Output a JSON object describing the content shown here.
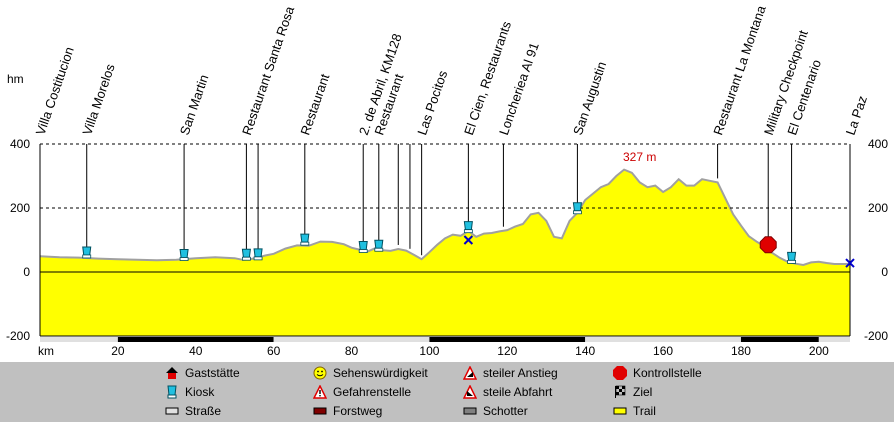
{
  "chart_data": {
    "type": "area",
    "y_unit": "hm",
    "x_unit": "km",
    "xlim": [
      0,
      208
    ],
    "ylim": [
      -200,
      400
    ],
    "x_ticks": [
      20,
      40,
      60,
      80,
      100,
      120,
      140,
      160,
      180,
      200
    ],
    "y_ticks": [
      400,
      200,
      0,
      -200
    ],
    "y_tick_labels": [
      "400",
      "200",
      "0",
      "-200"
    ],
    "grid": "dashed horizontal at 200 and 400",
    "fill_color": "#ffff00",
    "max_annotation": {
      "label": "327 m",
      "x": 150,
      "y": 327
    },
    "profile": [
      [
        0,
        49
      ],
      [
        5,
        46
      ],
      [
        10,
        45
      ],
      [
        15,
        42
      ],
      [
        20,
        40
      ],
      [
        25,
        38
      ],
      [
        30,
        37
      ],
      [
        35,
        38
      ],
      [
        40,
        43
      ],
      [
        45,
        46
      ],
      [
        50,
        43
      ],
      [
        52,
        38
      ],
      [
        54,
        40
      ],
      [
        56,
        46
      ],
      [
        58,
        52
      ],
      [
        60,
        57
      ],
      [
        63,
        73
      ],
      [
        66,
        83
      ],
      [
        69,
        82
      ],
      [
        72,
        95
      ],
      [
        75,
        94
      ],
      [
        78,
        87
      ],
      [
        80,
        76
      ],
      [
        82,
        70
      ],
      [
        84,
        63
      ],
      [
        86,
        74
      ],
      [
        88,
        68
      ],
      [
        90,
        66
      ],
      [
        92,
        72
      ],
      [
        94,
        67
      ],
      [
        96,
        54
      ],
      [
        98,
        40
      ],
      [
        100,
        62
      ],
      [
        102,
        85
      ],
      [
        104,
        105
      ],
      [
        106,
        117
      ],
      [
        108,
        113
      ],
      [
        110,
        128
      ],
      [
        112,
        110
      ],
      [
        114,
        120
      ],
      [
        116,
        122
      ],
      [
        118,
        127
      ],
      [
        120,
        131
      ],
      [
        122,
        142
      ],
      [
        124,
        150
      ],
      [
        126,
        180
      ],
      [
        128,
        185
      ],
      [
        130,
        160
      ],
      [
        132,
        110
      ],
      [
        134,
        105
      ],
      [
        136,
        160
      ],
      [
        138,
        185
      ],
      [
        140,
        225
      ],
      [
        142,
        245
      ],
      [
        144,
        265
      ],
      [
        146,
        275
      ],
      [
        148,
        300
      ],
      [
        150,
        320
      ],
      [
        152,
        310
      ],
      [
        154,
        280
      ],
      [
        156,
        265
      ],
      [
        158,
        270
      ],
      [
        160,
        250
      ],
      [
        162,
        265
      ],
      [
        164,
        290
      ],
      [
        166,
        270
      ],
      [
        168,
        270
      ],
      [
        170,
        290
      ],
      [
        172,
        285
      ],
      [
        174,
        280
      ],
      [
        176,
        230
      ],
      [
        178,
        180
      ],
      [
        180,
        145
      ],
      [
        182,
        112
      ],
      [
        184,
        95
      ],
      [
        186,
        80
      ],
      [
        188,
        60
      ],
      [
        190,
        44
      ],
      [
        192,
        32
      ],
      [
        194,
        26
      ],
      [
        196,
        22
      ],
      [
        198,
        30
      ],
      [
        200,
        32
      ],
      [
        202,
        28
      ],
      [
        204,
        25
      ],
      [
        208,
        25
      ]
    ],
    "waypoints": [
      {
        "x": 0,
        "y": 49,
        "label": "Villa Costitucion",
        "marker": "none"
      },
      {
        "x": 12,
        "y": 47,
        "label": "Villa Morelos",
        "marker": "kiosk"
      },
      {
        "x": 37,
        "y": 39,
        "label": "San Martin",
        "marker": "kiosk"
      },
      {
        "x": 53,
        "y": 40,
        "label": "Restaurant Santa Rosa",
        "marker": "kiosk"
      },
      {
        "x": 56,
        "y": 41,
        "label": "",
        "marker": "kiosk"
      },
      {
        "x": 68,
        "y": 87,
        "label": "Restaurant",
        "marker": "kiosk"
      },
      {
        "x": 83,
        "y": 64,
        "label": "2. de Abril, KM128",
        "marker": "kiosk"
      },
      {
        "x": 87,
        "y": 68,
        "label": "Restaurant",
        "marker": "kiosk"
      },
      {
        "x": 92,
        "y": 72,
        "label": "",
        "marker": "none"
      },
      {
        "x": 95,
        "y": 60,
        "label": "",
        "marker": "none"
      },
      {
        "x": 98,
        "y": 40,
        "label": "Las Pocitos",
        "marker": "none"
      },
      {
        "x": 110,
        "y": 126,
        "label": "El Cien, Restaurants",
        "marker": "kiosk"
      },
      {
        "x": 110,
        "y": 100,
        "label": "",
        "marker": "cross"
      },
      {
        "x": 119,
        "y": 129,
        "label": "Loncheriea Al 91",
        "marker": "none"
      },
      {
        "x": 138,
        "y": 185,
        "label": "San Augustin",
        "marker": "kiosk"
      },
      {
        "x": 174,
        "y": 280,
        "label": "Restaurant La Montana",
        "marker": "none"
      },
      {
        "x": 187,
        "y": 85,
        "label": "Military Checkpoint",
        "marker": "stop"
      },
      {
        "x": 193,
        "y": 30,
        "label": "El Centenario",
        "marker": "kiosk"
      },
      {
        "x": 208,
        "y": 28,
        "label": "La Paz",
        "marker": "cross"
      }
    ],
    "surface_bars": [
      {
        "from": 0,
        "to": 20,
        "type": "road"
      },
      {
        "from": 20,
        "to": 60,
        "type": "forest"
      },
      {
        "from": 60,
        "to": 100,
        "type": "road"
      },
      {
        "from": 100,
        "to": 140,
        "type": "forest"
      },
      {
        "from": 140,
        "to": 180,
        "type": "road"
      },
      {
        "from": 180,
        "to": 200,
        "type": "forest"
      },
      {
        "from": 200,
        "to": 208,
        "type": "road"
      }
    ]
  },
  "legend": [
    {
      "label": "Gaststätte",
      "icon": "restaurant-icon",
      "color": "#e00000"
    },
    {
      "label": "Sehenswürdigkeit",
      "icon": "smiley-icon",
      "color": "#ffff00"
    },
    {
      "label": "steiler Anstieg",
      "icon": "steep-ascent-icon",
      "color": "#e00000"
    },
    {
      "label": "Kontrollstelle",
      "icon": "stop-icon",
      "color": "#e00000"
    },
    {
      "label": "Kiosk",
      "icon": "kiosk-icon",
      "color": "#20c0e0"
    },
    {
      "label": "Gefahrenstelle",
      "icon": "warning-icon",
      "color": "#e00000"
    },
    {
      "label": "steile Abfahrt",
      "icon": "steep-descent-icon",
      "color": "#e00000"
    },
    {
      "label": "Ziel",
      "icon": "finish-flag-icon",
      "color": "#000000"
    },
    {
      "label": "Straße",
      "icon": "road-swatch",
      "color": "#e0e0e0"
    },
    {
      "label": "Forstweg",
      "icon": "forest-track-swatch",
      "color": "#800000"
    },
    {
      "label": "Schotter",
      "icon": "gravel-swatch",
      "color": "#808080"
    },
    {
      "label": "Trail",
      "icon": "trail-swatch",
      "color": "#ffff00"
    }
  ]
}
